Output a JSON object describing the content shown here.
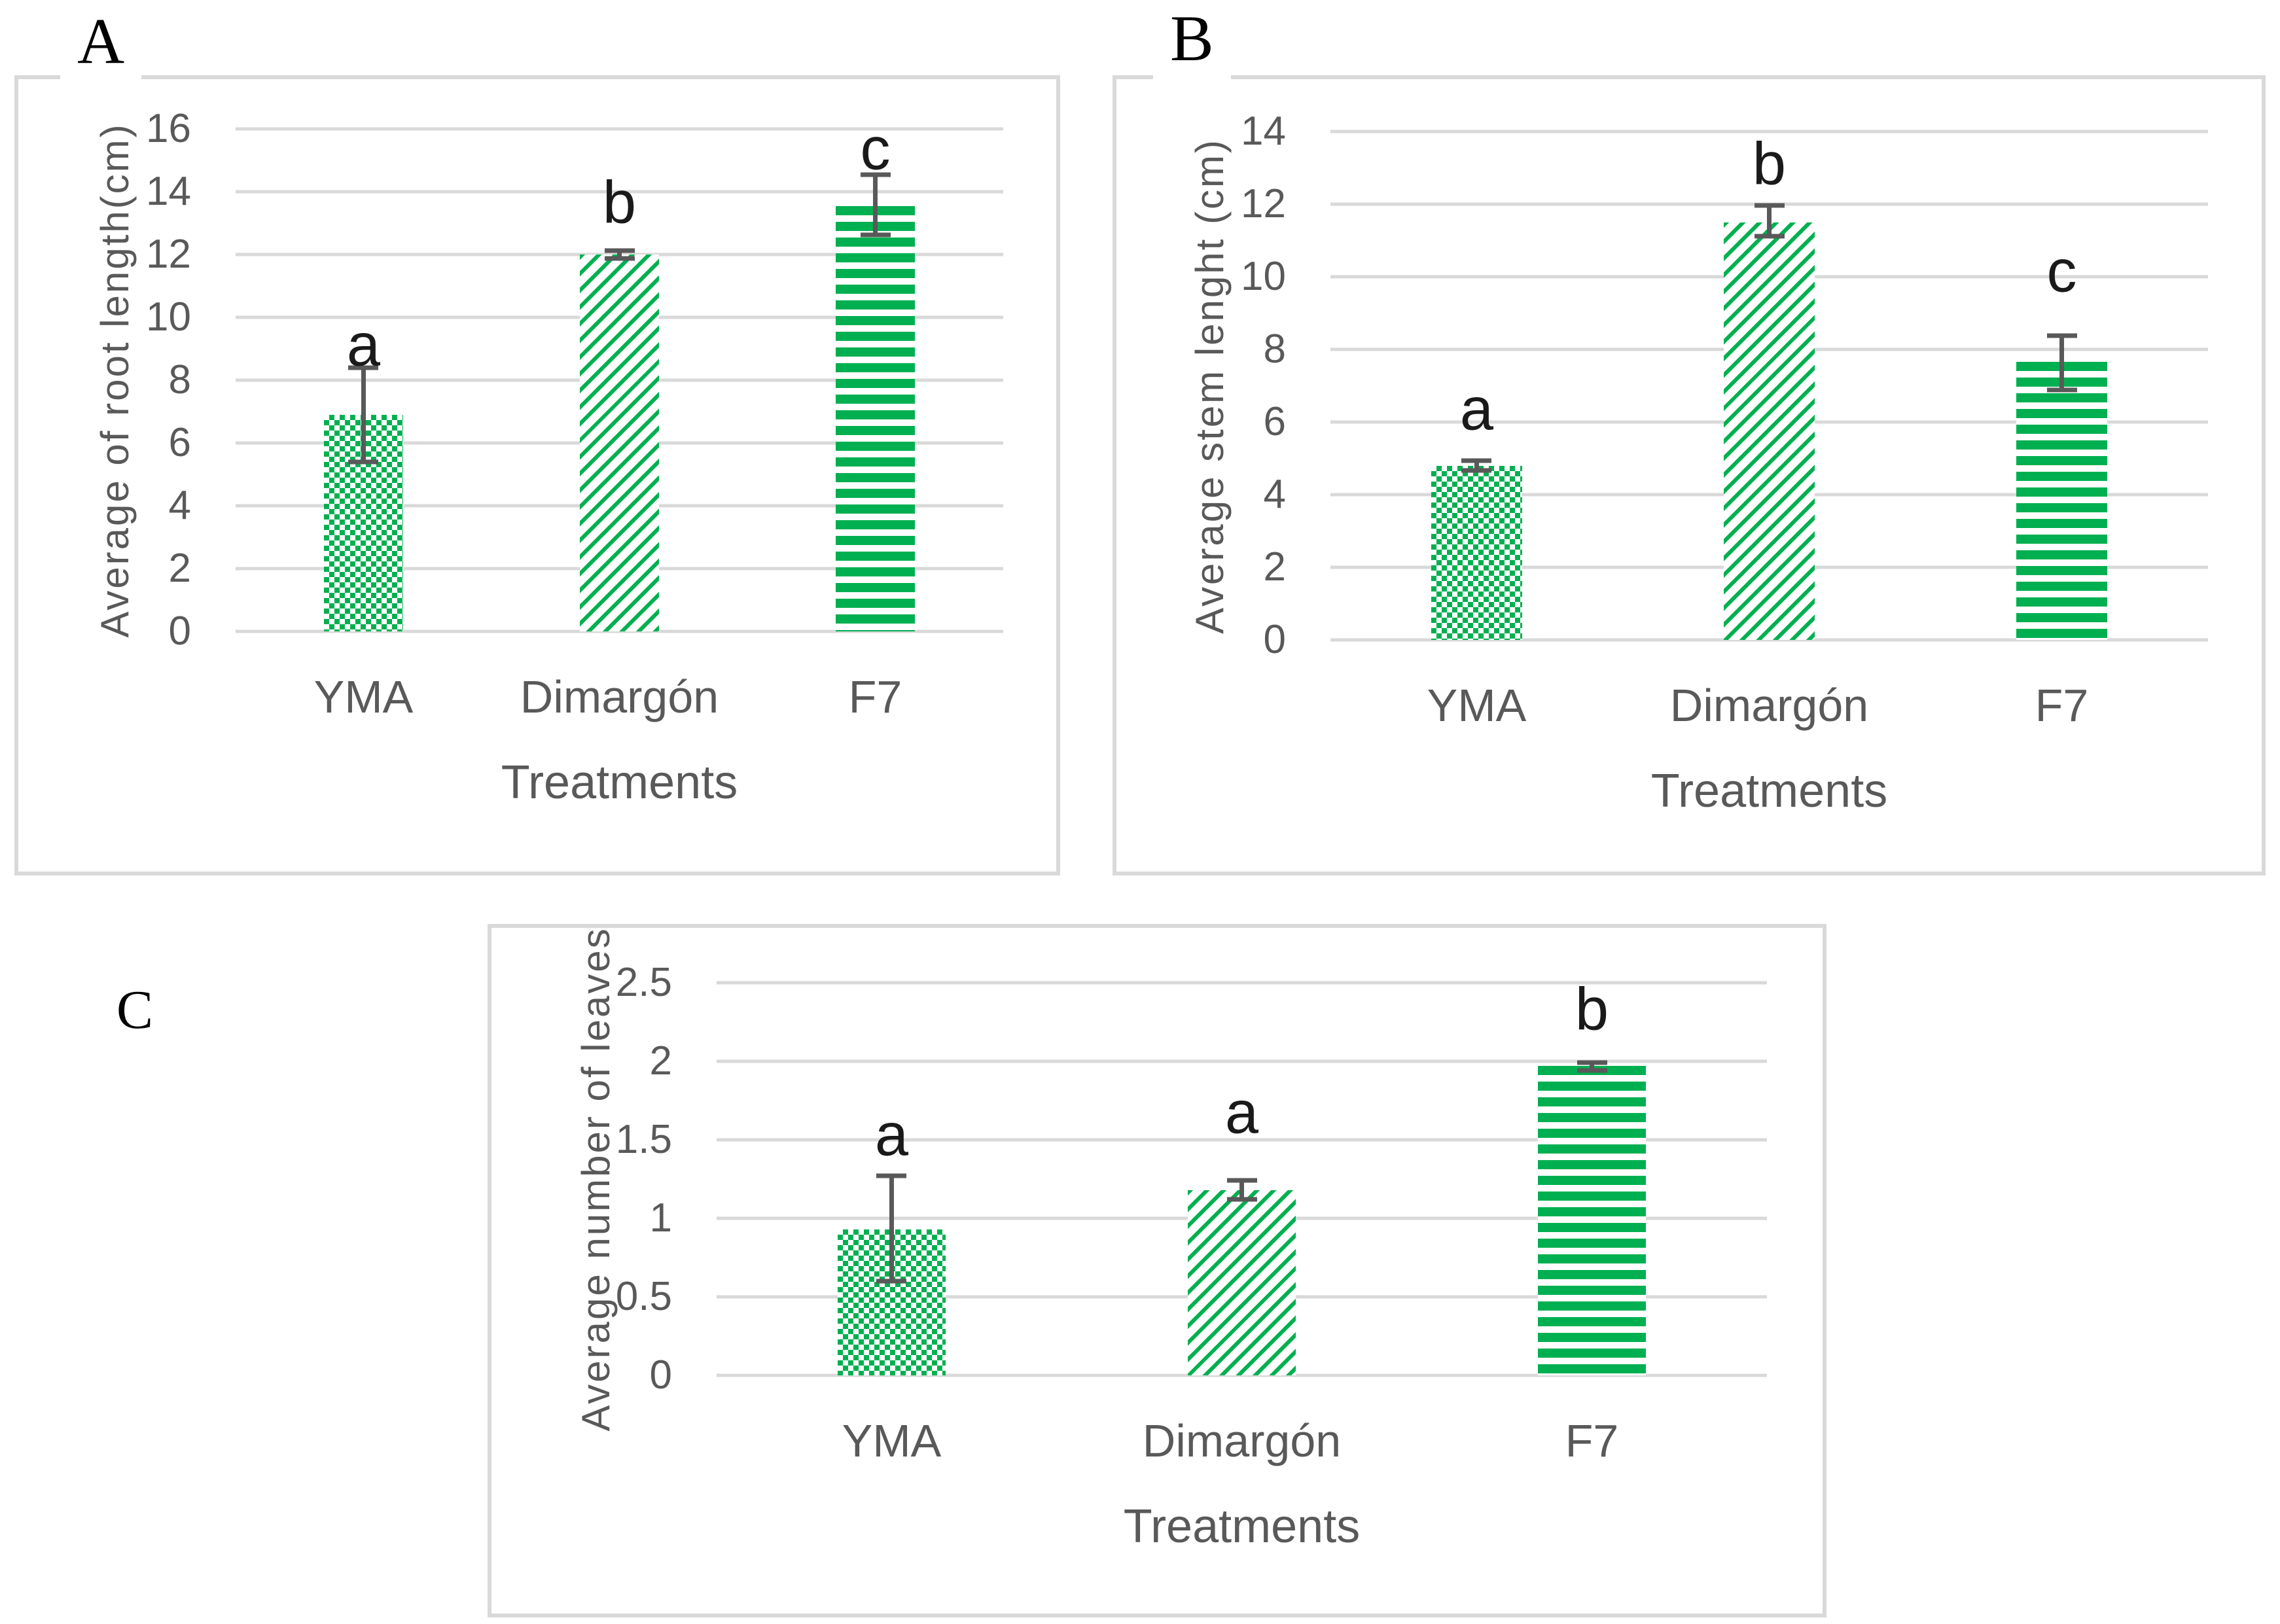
{
  "colors": {
    "bar_fill": "#00B050",
    "gridline": "#D9D9D9",
    "panel_border": "#D9D9D9",
    "axis_text": "#595959",
    "error_bar": "#595959",
    "sig_letter": "#1a1a1a",
    "panel_letter": "#000000"
  },
  "chart_data": [
    {
      "type": "bar",
      "panel_label": "A",
      "ylabel": "Average of root length(cm)",
      "xlabel": "Treatments",
      "categories": [
        "YMA",
        "Dimargón",
        "F7"
      ],
      "values": [
        6.9,
        12.0,
        13.55
      ],
      "error_low": [
        5.4,
        11.88,
        12.63
      ],
      "error_high": [
        8.4,
        12.13,
        14.55
      ],
      "sig_letters": [
        "a",
        "b",
        "c"
      ],
      "sig_letter_y": [
        9.1,
        13.65,
        15.35
      ],
      "ylim": [
        0,
        16
      ],
      "yticks": [
        0,
        2,
        4,
        6,
        8,
        10,
        12,
        14,
        16
      ],
      "ytick_labels": [
        "0",
        "2",
        "4",
        "6",
        "8",
        "10",
        "12",
        "14",
        "16"
      ],
      "bar_patterns": [
        "checkerboard",
        "diagonal-stripes",
        "horizontal-stripes"
      ],
      "grid": true,
      "legend": false
    },
    {
      "type": "bar",
      "panel_label": "B",
      "ylabel": "Average stem lenght (cm)",
      "xlabel": "Treatments",
      "categories": [
        "YMA",
        "Dimargón",
        "F7"
      ],
      "values": [
        4.8,
        11.5,
        7.65
      ],
      "error_low": [
        4.67,
        11.12,
        6.88
      ],
      "error_high": [
        4.93,
        11.97,
        8.38
      ],
      "sig_letters": [
        "a",
        "b",
        "c"
      ],
      "sig_letter_y": [
        6.35,
        13.1,
        10.15
      ],
      "ylim": [
        0,
        14
      ],
      "yticks": [
        0,
        2,
        4,
        6,
        8,
        10,
        12,
        14
      ],
      "ytick_labels": [
        "0",
        "2",
        "4",
        "6",
        "8",
        "10",
        "12",
        "14"
      ],
      "bar_patterns": [
        "checkerboard",
        "diagonal-stripes",
        "horizontal-stripes"
      ],
      "grid": true,
      "legend": false
    },
    {
      "type": "bar",
      "panel_label": "C",
      "ylabel": "Average  number of leaves",
      "xlabel": "Treatments",
      "categories": [
        "YMA",
        "Dimargón",
        "F7"
      ],
      "values": [
        0.93,
        1.18,
        1.97
      ],
      "error_low": [
        0.6,
        1.12,
        1.94
      ],
      "error_high": [
        1.27,
        1.24,
        1.99
      ],
      "sig_letters": [
        "a",
        "a",
        "b"
      ],
      "sig_letter_y": [
        1.53,
        1.67,
        2.33
      ],
      "ylim": [
        0,
        2.5
      ],
      "yticks": [
        0,
        0.5,
        1,
        1.5,
        2,
        2.5
      ],
      "ytick_labels": [
        "0",
        "0.5",
        "1",
        "1.5",
        "2",
        "2.5"
      ],
      "bar_patterns": [
        "checkerboard",
        "diagonal-stripes",
        "horizontal-stripes"
      ],
      "grid": true,
      "legend": false
    }
  ]
}
